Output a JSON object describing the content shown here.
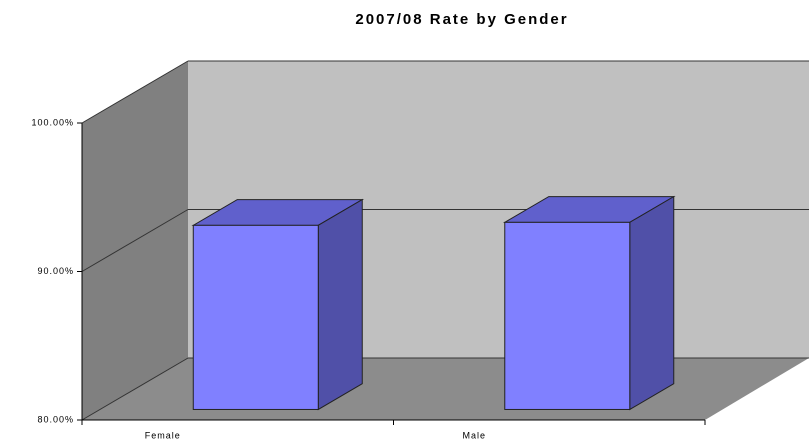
{
  "chart_data": {
    "type": "bar3d",
    "title": "2007/08 Rate by Gender",
    "categories": [
      "Female",
      "Male"
    ],
    "values": [
      92.4,
      92.6
    ],
    "color": "#8080ff",
    "ylim": [
      80,
      100
    ],
    "yticks": [
      {
        "value": 80,
        "label": "80.00%"
      },
      {
        "value": 90,
        "label": "90.00%"
      },
      {
        "value": 100,
        "label": "100.00%"
      }
    ],
    "grid": true
  }
}
